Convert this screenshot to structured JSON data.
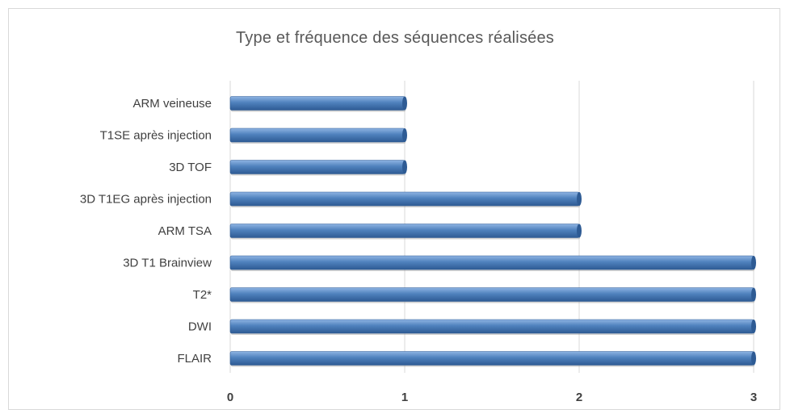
{
  "chart_data": {
    "type": "bar",
    "orientation": "horizontal",
    "title": "Type et fréquence des séquences réalisées",
    "categories": [
      "ARM veineuse",
      "T1SE après injection",
      "3D TOF",
      "3D T1EG  après injection",
      "ARM TSA",
      "3D T1 Brainview",
      "T2*",
      "DWI",
      "FLAIR"
    ],
    "values": [
      1,
      1,
      1,
      2,
      2,
      3,
      3,
      3,
      3
    ],
    "xlim": [
      0,
      3
    ],
    "xticks": [
      "0",
      "1",
      "2",
      "3"
    ],
    "grid": true,
    "legend": "none",
    "bar_color": "#4f81bd",
    "bar_color_light": "#8fb4e3",
    "bar_color_dark": "#2e5b94"
  }
}
